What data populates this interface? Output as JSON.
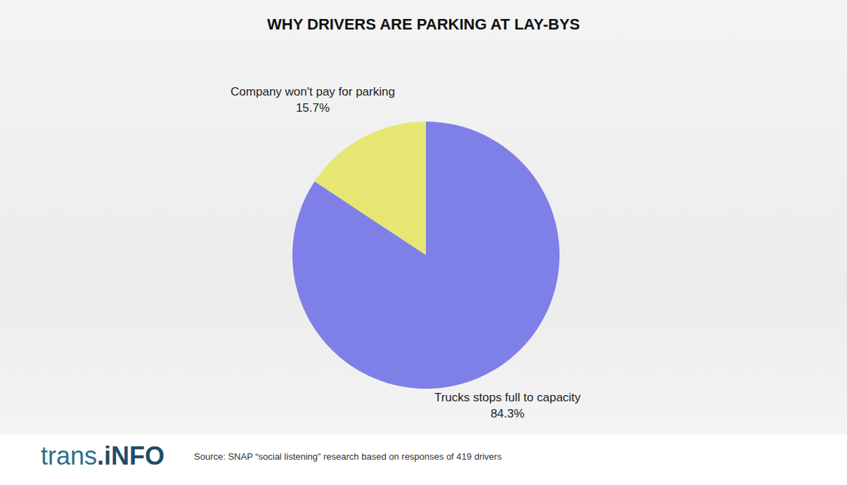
{
  "chart_data": {
    "type": "pie",
    "title": "WHY DRIVERS ARE PARKING AT LAY-BYS",
    "categories": [
      "Company won't pay for parking",
      "Trucks stops full to capacity"
    ],
    "values": [
      15.7,
      84.3
    ],
    "value_labels": [
      "15.7%",
      "84.3%"
    ],
    "colors": [
      "#e6e673",
      "#7f7fe8"
    ],
    "data_labels": true,
    "source": "Source: SNAP “social listening” research based on responses of 419 drivers",
    "logo": "trans.iNFO"
  }
}
